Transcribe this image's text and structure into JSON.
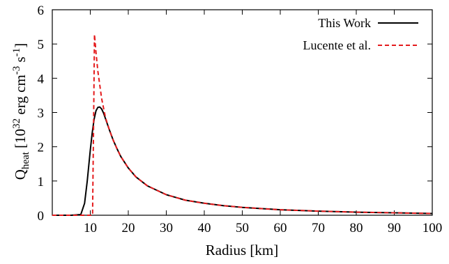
{
  "chart_data": {
    "type": "line",
    "title": "",
    "xlabel": "Radius [km]",
    "ylabel": {
      "base": "Q",
      "sub": "heat",
      "bracket_open": " [10",
      "sup1": "32",
      "mid": " erg cm",
      "sup2": "-3",
      "mid2": " s",
      "sup3": "-1",
      "bracket_close": "]"
    },
    "xlim": [
      0,
      100
    ],
    "ylim": [
      0,
      6
    ],
    "xticks": [
      10,
      20,
      30,
      40,
      50,
      60,
      70,
      80,
      90,
      100
    ],
    "xtick_labels": [
      "10",
      "20",
      "30",
      "40",
      "50",
      "60",
      "70",
      "80",
      "90",
      "100"
    ],
    "yticks": [
      0,
      1,
      2,
      3,
      4,
      5,
      6
    ],
    "ytick_labels": [
      "0",
      "1",
      "2",
      "3",
      "4",
      "5",
      "6"
    ],
    "grid": false,
    "legend_position": "top-right",
    "series": [
      {
        "name": "This Work",
        "color": "#000000",
        "style": "solid",
        "x": [
          0,
          5,
          7.5,
          8.5,
          9.2,
          10,
          10.5,
          11,
          11.5,
          12,
          12.5,
          13,
          13.5,
          14,
          15,
          16,
          17,
          18,
          20,
          22,
          25,
          30,
          35,
          40,
          45,
          50,
          60,
          70,
          80,
          90,
          100
        ],
        "y": [
          0,
          0,
          0.02,
          0.35,
          1.0,
          1.9,
          2.4,
          2.8,
          3.05,
          3.15,
          3.16,
          3.1,
          2.98,
          2.82,
          2.5,
          2.2,
          1.95,
          1.72,
          1.38,
          1.12,
          0.86,
          0.6,
          0.44,
          0.35,
          0.28,
          0.23,
          0.16,
          0.12,
          0.09,
          0.07,
          0.05
        ]
      },
      {
        "name": "Lucente et al.",
        "color": "#e41a1c",
        "style": "dashed",
        "x": [
          0,
          9,
          10.6,
          10.9,
          11.1,
          11.5,
          12,
          13,
          14,
          15,
          16,
          17,
          18,
          20,
          22,
          25,
          30,
          35,
          40,
          45,
          50,
          60,
          70,
          80,
          90,
          100
        ],
        "y": [
          0,
          0,
          0,
          3.0,
          5.28,
          4.75,
          4.2,
          3.4,
          2.85,
          2.5,
          2.2,
          1.95,
          1.72,
          1.38,
          1.12,
          0.86,
          0.6,
          0.44,
          0.35,
          0.28,
          0.23,
          0.16,
          0.12,
          0.09,
          0.07,
          0.05
        ]
      }
    ]
  }
}
